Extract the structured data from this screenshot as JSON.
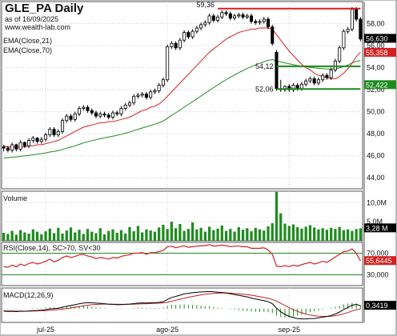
{
  "header": {
    "title": "GLE_PA Daily",
    "as_of": "as of 16/09/2025",
    "site": "www.wealth-lab.com"
  },
  "colors": {
    "candle_up": "#ffffff",
    "candle_down": "#000000",
    "ema_fast": "#d42020",
    "ema_slow": "#1f8a1f",
    "volume": "#1e8c1e",
    "rsi_line": "#d42020",
    "rsi_band": "#1f8a1f",
    "macd_line": "#000000",
    "signal_line": "#c02020",
    "histogram": "#1e8c1e",
    "resistance": "#d42020",
    "support": "#1f8a1f",
    "label_bg": "#000000"
  },
  "chart_data": [
    {
      "type": "candlestick",
      "panel": "price",
      "indicators": [
        "EMA(Close,21)",
        "EMA(Close,70)"
      ],
      "ylim": [
        43,
        60
      ],
      "y_ticks": [
        "44,00",
        "46,00",
        "48,00",
        "50,00",
        "52,00",
        "54,00",
        "56,00",
        "58,00"
      ],
      "x_ticks": [
        "jul-25",
        "ago-25",
        "sep-25"
      ],
      "x_tick_index": [
        10,
        39,
        68
      ],
      "close": [
        46.7,
        46.5,
        47.0,
        46.6,
        47.2,
        46.9,
        47.4,
        47.6,
        47.3,
        47.5,
        47.9,
        48.4,
        47.9,
        48.2,
        49.2,
        49.6,
        49.3,
        49.8,
        50.3,
        50.4,
        50.1,
        49.9,
        49.6,
        49.8,
        49.7,
        49.5,
        49.9,
        49.8,
        50.3,
        50.6,
        50.8,
        51.4,
        51.5,
        51.6,
        51.3,
        51.8,
        51.9,
        52.4,
        52.9,
        55.9,
        56.2,
        55.8,
        56.5,
        57.2,
        56.8,
        57.3,
        57.6,
        57.9,
        58.1,
        58.7,
        58.3,
        58.6,
        59.0,
        58.9,
        58.5,
        58.7,
        58.8,
        58.6,
        58.7,
        58.2,
        58.1,
        58.2,
        58.4,
        57.7,
        56.2,
        52.1,
        52.0,
        52.3,
        52.0,
        52.4,
        52.1,
        52.5,
        52.8,
        53.0,
        52.6,
        52.9,
        53.3,
        53.1,
        53.8,
        54.6,
        55.8,
        57.3,
        57.5,
        59.3,
        58.4,
        56.6
      ],
      "open": [
        46.8,
        46.7,
        46.5,
        47.0,
        46.6,
        47.2,
        46.9,
        47.4,
        47.6,
        47.3,
        47.5,
        47.9,
        48.4,
        47.9,
        48.2,
        49.2,
        49.6,
        49.3,
        49.8,
        50.3,
        50.4,
        50.1,
        49.9,
        49.6,
        49.8,
        49.7,
        49.5,
        49.9,
        49.8,
        50.3,
        50.6,
        50.8,
        51.4,
        51.5,
        51.6,
        51.3,
        51.8,
        51.9,
        52.4,
        52.9,
        55.9,
        56.2,
        55.8,
        56.5,
        57.2,
        56.8,
        57.3,
        57.6,
        57.9,
        58.1,
        58.7,
        58.3,
        58.6,
        59.0,
        58.9,
        58.5,
        58.7,
        58.8,
        58.6,
        58.7,
        58.2,
        58.1,
        58.2,
        58.4,
        57.7,
        55.4,
        52.1,
        52.0,
        52.3,
        52.0,
        52.4,
        52.1,
        52.5,
        52.8,
        53.0,
        52.6,
        52.9,
        53.3,
        53.1,
        53.8,
        54.6,
        55.8,
        57.3,
        57.5,
        59.3,
        58.4
      ],
      "high": [
        47.0,
        46.9,
        47.2,
        47.1,
        47.4,
        47.3,
        47.6,
        47.8,
        47.7,
        47.7,
        48.1,
        48.6,
        48.6,
        48.4,
        49.4,
        49.8,
        49.8,
        50.0,
        50.5,
        50.6,
        50.6,
        50.3,
        50.1,
        50.0,
        50.0,
        49.9,
        50.1,
        50.1,
        50.5,
        50.8,
        51.0,
        51.6,
        51.7,
        51.8,
        51.8,
        52.0,
        52.1,
        52.6,
        53.1,
        56.1,
        56.4,
        56.4,
        56.7,
        57.4,
        57.4,
        57.5,
        57.8,
        58.1,
        58.3,
        58.9,
        58.9,
        58.8,
        59.2,
        59.2,
        59.1,
        58.9,
        59.0,
        59.0,
        58.9,
        58.9,
        58.4,
        58.4,
        58.6,
        58.6,
        57.9,
        55.6,
        52.9,
        52.4,
        52.5,
        52.6,
        52.6,
        52.7,
        53.0,
        53.2,
        53.2,
        53.1,
        53.5,
        53.5,
        54.0,
        54.8,
        56.0,
        57.5,
        57.7,
        59.5,
        59.5,
        58.6
      ],
      "low": [
        46.4,
        46.3,
        46.3,
        46.4,
        46.4,
        46.7,
        46.7,
        47.2,
        47.1,
        47.1,
        47.3,
        47.7,
        47.7,
        47.7,
        48.0,
        49.0,
        49.1,
        49.1,
        49.6,
        50.1,
        49.9,
        49.7,
        49.4,
        49.4,
        49.5,
        49.3,
        49.3,
        49.6,
        49.6,
        50.1,
        50.4,
        50.6,
        51.2,
        51.3,
        51.1,
        51.1,
        51.6,
        51.7,
        52.2,
        52.7,
        55.7,
        55.6,
        55.6,
        56.3,
        56.6,
        56.6,
        57.1,
        57.4,
        57.7,
        57.9,
        58.1,
        58.1,
        58.4,
        58.7,
        58.3,
        58.3,
        58.5,
        58.4,
        58.4,
        58.0,
        57.9,
        57.9,
        58.0,
        57.5,
        56.0,
        51.9,
        51.8,
        51.8,
        51.8,
        51.8,
        51.9,
        51.9,
        52.3,
        52.6,
        52.4,
        52.4,
        52.7,
        52.9,
        52.9,
        53.6,
        54.4,
        55.6,
        57.1,
        57.3,
        58.2,
        56.4
      ],
      "ema_fast": [
        46.9,
        46.8,
        46.8,
        46.8,
        46.8,
        46.8,
        46.9,
        46.9,
        47.0,
        47.0,
        47.1,
        47.2,
        47.3,
        47.4,
        47.6,
        47.8,
        48.0,
        48.2,
        48.4,
        48.6,
        48.7,
        48.8,
        48.9,
        49.0,
        49.0,
        49.1,
        49.1,
        49.2,
        49.3,
        49.4,
        49.5,
        49.7,
        49.9,
        50.1,
        50.2,
        50.4,
        50.5,
        50.7,
        51.0,
        51.4,
        51.8,
        52.2,
        52.6,
        53.0,
        53.4,
        53.8,
        54.2,
        54.6,
        55.0,
        55.4,
        55.7,
        56.0,
        56.3,
        56.6,
        56.8,
        57.0,
        57.2,
        57.3,
        57.4,
        57.5,
        57.5,
        57.6,
        57.6,
        57.6,
        57.5,
        57.0,
        56.5,
        56.0,
        55.5,
        55.1,
        54.7,
        54.3,
        54.0,
        53.8,
        53.5,
        53.3,
        53.2,
        53.1,
        53.0,
        53.0,
        53.2,
        53.5,
        53.9,
        54.4,
        55.0,
        55.4
      ]
    },
    {
      "type": "bar",
      "panel": "volume",
      "title": "Volume",
      "y_ticks": [
        "10,0M",
        "5,0M"
      ],
      "ylim": [
        0,
        13
      ],
      "last_label": "3,28 M",
      "values": [
        2.1,
        1.8,
        2.6,
        1.6,
        2.8,
        2.2,
        1.9,
        3.0,
        2.4,
        1.7,
        2.5,
        3.2,
        2.0,
        3.4,
        1.9,
        2.7,
        3.5,
        2.2,
        2.9,
        1.8,
        3.1,
        2.4,
        2.0,
        3.3,
        1.7,
        2.6,
        3.0,
        2.1,
        2.8,
        1.9,
        3.6,
        2.5,
        3.9,
        2.2,
        3.0,
        2.7,
        2.4,
        3.5,
        4.2,
        3.1,
        5.0,
        3.3,
        4.4,
        2.6,
        3.1,
        4.8,
        3.0,
        3.4,
        2.4,
        3.7,
        2.8,
        3.2,
        4.0,
        2.6,
        3.1,
        2.4,
        3.6,
        2.9,
        3.3,
        2.5,
        3.4,
        3.0,
        2.7,
        3.8,
        4.6,
        12.8,
        7.2,
        4.5,
        3.9,
        4.3,
        3.6,
        3.2,
        3.7,
        4.1,
        3.5,
        3.0,
        3.3,
        2.9,
        3.4,
        3.1,
        3.6,
        2.8,
        3.0,
        2.6,
        3.1,
        3.28
      ]
    },
    {
      "type": "line",
      "panel": "rsi",
      "title": "RSI(Close,14), SC>70, SV<30",
      "ylim": [
        10,
        90
      ],
      "y_ticks": [
        "70,000",
        "30,000"
      ],
      "bands": [
        70,
        30
      ],
      "last_label": "55,6445",
      "values": [
        45,
        44,
        48,
        45,
        50,
        47,
        51,
        53,
        50,
        52,
        55,
        59,
        54,
        57,
        62,
        65,
        62,
        64,
        67,
        68,
        65,
        63,
        60,
        62,
        61,
        59,
        62,
        61,
        64,
        66,
        67,
        70,
        70,
        71,
        68,
        71,
        71,
        73,
        75,
        82,
        83,
        80,
        82,
        84,
        81,
        82,
        83,
        84,
        84,
        86,
        83,
        84,
        85,
        84,
        82,
        83,
        83,
        82,
        82,
        79,
        79,
        79,
        80,
        76,
        68,
        46,
        45,
        47,
        45,
        48,
        46,
        49,
        51,
        53,
        50,
        52,
        55,
        53,
        58,
        63,
        68,
        73,
        74,
        78,
        70,
        55.6445
      ]
    },
    {
      "type": "line",
      "panel": "macd",
      "title": "MACD(12,26,9)",
      "ylim": [
        -1.6,
        2.4
      ],
      "last_label": "0,3419",
      "macd": [
        -0.3,
        -0.33,
        -0.31,
        -0.34,
        -0.3,
        -0.31,
        -0.27,
        -0.22,
        -0.21,
        -0.18,
        -0.12,
        -0.03,
        0.0,
        0.04,
        0.16,
        0.29,
        0.37,
        0.46,
        0.57,
        0.65,
        0.68,
        0.68,
        0.64,
        0.62,
        0.58,
        0.52,
        0.5,
        0.46,
        0.47,
        0.5,
        0.53,
        0.59,
        0.64,
        0.67,
        0.66,
        0.68,
        0.69,
        0.73,
        0.79,
        1.07,
        1.3,
        1.42,
        1.56,
        1.72,
        1.78,
        1.85,
        1.9,
        1.94,
        1.96,
        1.99,
        1.96,
        1.92,
        1.88,
        1.82,
        1.72,
        1.63,
        1.55,
        1.46,
        1.37,
        1.24,
        1.12,
        1.01,
        0.93,
        0.8,
        0.57,
        0.06,
        -0.36,
        -0.67,
        -0.9,
        -1.04,
        -1.15,
        -1.19,
        -1.19,
        -1.16,
        -1.14,
        -1.08,
        -0.99,
        -0.91,
        -0.79,
        -0.62,
        -0.39,
        -0.1,
        0.13,
        0.4,
        0.49,
        0.34
      ],
      "signal": [
        -0.25,
        -0.27,
        -0.28,
        -0.29,
        -0.29,
        -0.3,
        -0.29,
        -0.28,
        -0.26,
        -0.24,
        -0.22,
        -0.18,
        -0.15,
        -0.11,
        -0.06,
        0.01,
        0.08,
        0.16,
        0.24,
        0.33,
        0.4,
        0.46,
        0.49,
        0.51,
        0.53,
        0.53,
        0.52,
        0.51,
        0.5,
        0.5,
        0.51,
        0.52,
        0.54,
        0.56,
        0.58,
        0.6,
        0.62,
        0.64,
        0.67,
        0.75,
        0.86,
        0.98,
        1.09,
        1.22,
        1.32,
        1.42,
        1.51,
        1.6,
        1.67,
        1.73,
        1.78,
        1.8,
        1.82,
        1.82,
        1.8,
        1.76,
        1.73,
        1.68,
        1.64,
        1.56,
        1.48,
        1.39,
        1.3,
        1.2,
        1.07,
        0.87,
        0.62,
        0.36,
        0.11,
        -0.12,
        -0.32,
        -0.49,
        -0.63,
        -0.74,
        -0.82,
        -0.87,
        -0.89,
        -0.9,
        -0.88,
        -0.82,
        -0.73,
        -0.6,
        -0.46,
        -0.28,
        -0.13,
        -0.03
      ],
      "histogram": [
        -0.05,
        -0.06,
        -0.03,
        -0.05,
        -0.01,
        -0.01,
        0.02,
        0.06,
        0.05,
        0.06,
        0.1,
        0.15,
        0.15,
        0.15,
        0.22,
        0.28,
        0.29,
        0.3,
        0.33,
        0.32,
        0.28,
        0.22,
        0.15,
        0.11,
        0.05,
        -0.01,
        -0.02,
        -0.05,
        -0.03,
        0.0,
        0.02,
        0.07,
        0.1,
        0.11,
        0.08,
        0.08,
        0.07,
        0.09,
        0.12,
        0.32,
        0.44,
        0.44,
        0.47,
        0.5,
        0.46,
        0.43,
        0.39,
        0.34,
        0.29,
        0.26,
        0.18,
        0.12,
        0.06,
        0.0,
        -0.08,
        -0.13,
        -0.18,
        -0.22,
        -0.27,
        -0.32,
        -0.36,
        -0.38,
        -0.37,
        -0.4,
        -0.5,
        -0.81,
        -0.98,
        -1.03,
        -1.01,
        -0.92,
        -0.83,
        -0.7,
        -0.56,
        -0.42,
        -0.32,
        -0.21,
        -0.1,
        -0.01,
        0.09,
        0.2,
        0.34,
        0.5,
        0.59,
        0.68,
        0.62,
        0.37
      ]
    }
  ],
  "annotations": {
    "levels": [
      {
        "name": "resistance",
        "value": 59.36,
        "label": "59,36",
        "from_index": 51,
        "to_index": 85
      },
      {
        "name": "support-upper",
        "value": 54.12,
        "label": "54,12",
        "from_index": 65,
        "to_index": 85
      },
      {
        "name": "support-lower",
        "value": 52.06,
        "label": "52,06",
        "from_index": 65,
        "to_index": 85
      }
    ],
    "price_labels": {
      "close": "56,630",
      "ema_fast": "55,358",
      "ema_slow": "52,422"
    },
    "ema_fast_label": "EMA(Close,21)",
    "ema_slow_label": "EMA(Close,70)"
  }
}
